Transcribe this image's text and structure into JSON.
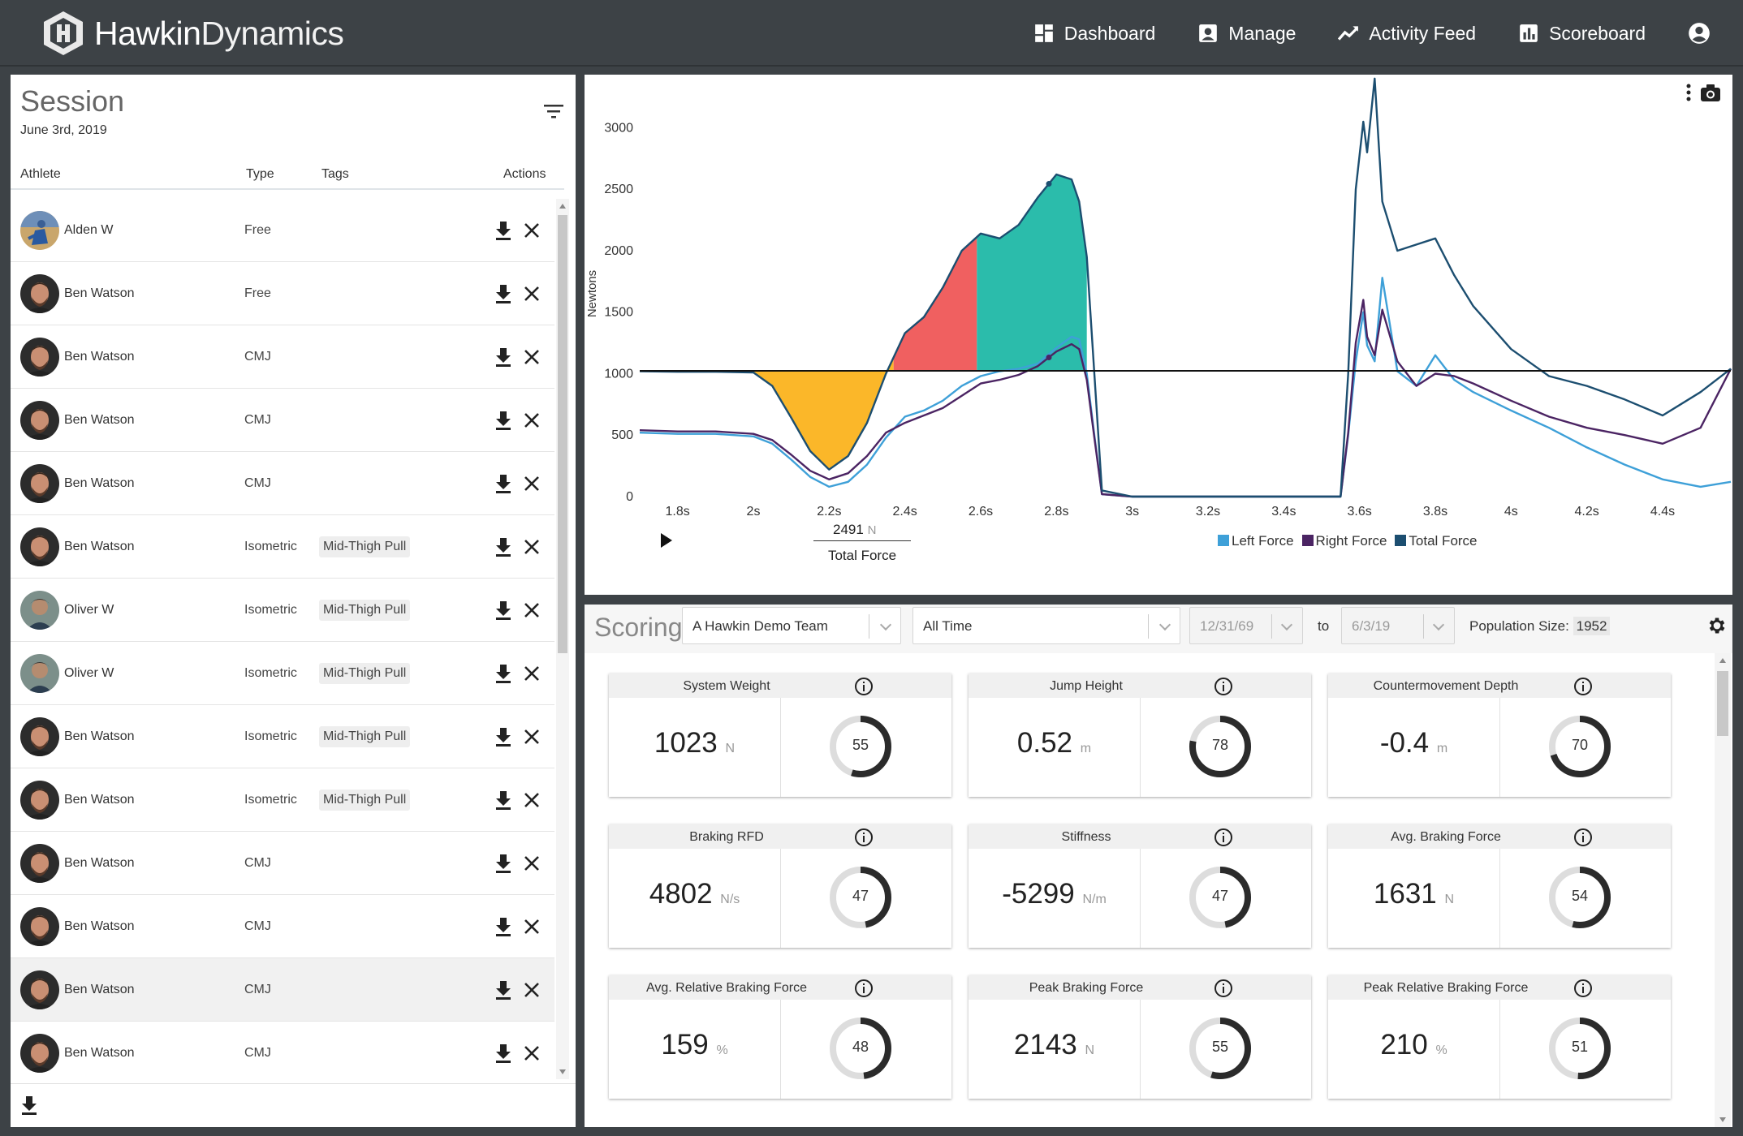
{
  "header": {
    "brand_bold": "Hawkin",
    "brand_light": "Dynamics",
    "nav": [
      {
        "label": "Dashboard",
        "icon": "dashboard-icon"
      },
      {
        "label": "Manage",
        "icon": "manage-icon"
      },
      {
        "label": "Activity Feed",
        "icon": "activity-feed-icon"
      },
      {
        "label": "Scoreboard",
        "icon": "scoreboard-icon"
      }
    ],
    "account_icon": "account-icon"
  },
  "session": {
    "title": "Session",
    "date": "June 3rd, 2019",
    "columns": {
      "athlete": "Athlete",
      "type": "Type",
      "tags": "Tags",
      "actions": "Actions"
    },
    "rows": [
      {
        "athlete": "Alden W",
        "type": "Free",
        "tag": "",
        "avatar": "alden"
      },
      {
        "athlete": "Ben Watson",
        "type": "Free",
        "tag": "",
        "avatar": "ben"
      },
      {
        "athlete": "Ben Watson",
        "type": "CMJ",
        "tag": "",
        "avatar": "ben"
      },
      {
        "athlete": "Ben Watson",
        "type": "CMJ",
        "tag": "",
        "avatar": "ben"
      },
      {
        "athlete": "Ben Watson",
        "type": "CMJ",
        "tag": "",
        "avatar": "ben"
      },
      {
        "athlete": "Ben Watson",
        "type": "Isometric",
        "tag": "Mid-Thigh Pull",
        "avatar": "ben"
      },
      {
        "athlete": "Oliver W",
        "type": "Isometric",
        "tag": "Mid-Thigh Pull",
        "avatar": "oliver"
      },
      {
        "athlete": "Oliver W",
        "type": "Isometric",
        "tag": "Mid-Thigh Pull",
        "avatar": "oliver"
      },
      {
        "athlete": "Ben Watson",
        "type": "Isometric",
        "tag": "Mid-Thigh Pull",
        "avatar": "ben"
      },
      {
        "athlete": "Ben Watson",
        "type": "Isometric",
        "tag": "Mid-Thigh Pull",
        "avatar": "ben"
      },
      {
        "athlete": "Ben Watson",
        "type": "CMJ",
        "tag": "",
        "avatar": "ben"
      },
      {
        "athlete": "Ben Watson",
        "type": "CMJ",
        "tag": "",
        "avatar": "ben"
      },
      {
        "athlete": "Ben Watson",
        "type": "CMJ",
        "tag": "",
        "avatar": "ben",
        "selected": true
      },
      {
        "athlete": "Ben Watson",
        "type": "CMJ",
        "tag": "",
        "avatar": "ben"
      }
    ]
  },
  "chart_data": {
    "type": "line",
    "ylabel": "Newtons",
    "ylim": [
      0,
      3300
    ],
    "xlim": [
      1.7,
      4.58
    ],
    "y_ticks": [
      0,
      500,
      1000,
      1500,
      2000,
      2500,
      3000
    ],
    "x_ticks": [
      "1.8s",
      "2s",
      "2.2s",
      "2.4s",
      "2.6s",
      "2.8s",
      "3s",
      "3.2s",
      "3.4s",
      "3.6s",
      "3.8s",
      "4s",
      "4.2s",
      "4.4s"
    ],
    "x_tick_values": [
      1.8,
      2.0,
      2.2,
      2.4,
      2.6,
      2.8,
      3.0,
      3.2,
      3.4,
      3.6,
      3.8,
      4.0,
      4.2,
      4.4
    ],
    "system_weight_line": 1023,
    "phases": [
      {
        "name": "unweighting",
        "color": "#fbb729",
        "x_from": 2.0,
        "x_to": 2.37
      },
      {
        "name": "braking",
        "color": "#f06060",
        "x_from": 2.37,
        "x_to": 2.59
      },
      {
        "name": "propulsive",
        "color": "#2bbcab",
        "x_from": 2.59,
        "x_to": 2.88
      }
    ],
    "series": [
      {
        "name": "Left Force",
        "color": "#3ea0d8",
        "x": [
          1.7,
          1.8,
          1.9,
          2.0,
          2.05,
          2.1,
          2.15,
          2.2,
          2.25,
          2.3,
          2.35,
          2.4,
          2.45,
          2.5,
          2.55,
          2.6,
          2.65,
          2.7,
          2.75,
          2.8,
          2.84,
          2.86,
          2.88,
          2.9,
          2.92,
          3.0,
          3.2,
          3.4,
          3.55,
          3.57,
          3.59,
          3.61,
          3.62,
          3.64,
          3.66,
          3.7,
          3.75,
          3.8,
          3.85,
          3.9,
          4.0,
          4.1,
          4.2,
          4.3,
          4.4,
          4.5,
          4.58
        ],
        "y": [
          520,
          510,
          510,
          490,
          430,
          300,
          160,
          80,
          120,
          260,
          480,
          650,
          700,
          780,
          900,
          980,
          1020,
          1040,
          1080,
          1210,
          1300,
          1280,
          1000,
          500,
          20,
          0,
          0,
          0,
          0,
          500,
          1100,
          1500,
          1230,
          1100,
          1780,
          1020,
          900,
          1150,
          950,
          850,
          700,
          560,
          400,
          260,
          140,
          80,
          120
        ]
      },
      {
        "name": "Right Force",
        "color": "#4b2463",
        "x": [
          1.7,
          1.8,
          1.9,
          2.0,
          2.05,
          2.1,
          2.15,
          2.2,
          2.25,
          2.3,
          2.35,
          2.4,
          2.45,
          2.5,
          2.55,
          2.6,
          2.65,
          2.7,
          2.75,
          2.8,
          2.84,
          2.86,
          2.88,
          2.9,
          2.92,
          3.0,
          3.2,
          3.4,
          3.55,
          3.57,
          3.59,
          3.61,
          3.62,
          3.64,
          3.66,
          3.7,
          3.75,
          3.8,
          3.85,
          3.9,
          4.0,
          4.1,
          4.2,
          4.3,
          4.4,
          4.5,
          4.58
        ],
        "y": [
          540,
          530,
          530,
          510,
          460,
          340,
          210,
          140,
          190,
          330,
          520,
          600,
          660,
          720,
          820,
          920,
          950,
          990,
          1060,
          1180,
          1240,
          1200,
          950,
          480,
          20,
          0,
          0,
          0,
          0,
          520,
          1250,
          1600,
          1300,
          1150,
          1520,
          1100,
          900,
          1000,
          980,
          920,
          780,
          650,
          560,
          500,
          430,
          560,
          1040
        ]
      },
      {
        "name": "Total Force",
        "color": "#1c4e70",
        "x": [
          1.7,
          1.8,
          1.9,
          2.0,
          2.05,
          2.1,
          2.15,
          2.2,
          2.25,
          2.3,
          2.35,
          2.4,
          2.45,
          2.5,
          2.55,
          2.6,
          2.65,
          2.7,
          2.75,
          2.8,
          2.84,
          2.86,
          2.88,
          2.9,
          2.92,
          3.0,
          3.2,
          3.4,
          3.55,
          3.57,
          3.59,
          3.61,
          3.62,
          3.64,
          3.66,
          3.68,
          3.7,
          3.75,
          3.8,
          3.85,
          3.9,
          4.0,
          4.1,
          4.2,
          4.3,
          4.4,
          4.5,
          4.58
        ],
        "y": [
          1020,
          1015,
          1015,
          1010,
          900,
          640,
          370,
          220,
          330,
          600,
          1000,
          1330,
          1460,
          1700,
          2000,
          2140,
          2100,
          2210,
          2430,
          2620,
          2580,
          2400,
          1950,
          1000,
          50,
          0,
          0,
          0,
          0,
          1000,
          2500,
          3050,
          2800,
          3400,
          2400,
          2200,
          2000,
          2050,
          2100,
          1800,
          1550,
          1200,
          980,
          900,
          790,
          660,
          850,
          1040
        ]
      }
    ],
    "readout": {
      "value": "2491",
      "unit": "N",
      "label": "Total Force"
    },
    "legend": [
      "Left Force",
      "Right Force",
      "Total Force"
    ],
    "legend_placement": "bottom-right"
  },
  "scoring": {
    "title": "Scoring",
    "team": "A Hawkin Demo Team",
    "range": "All Time",
    "from": "12/31/69",
    "to_label": "to",
    "to": "6/3/19",
    "population_label": "Population Size:",
    "population": "1952",
    "cards": [
      {
        "title": "System Weight",
        "value": "1023",
        "unit": "N",
        "score": 55
      },
      {
        "title": "Jump Height",
        "value": "0.52",
        "unit": "m",
        "score": 78
      },
      {
        "title": "Countermovement Depth",
        "value": "-0.4",
        "unit": "m",
        "score": 70
      },
      {
        "title": "Braking RFD",
        "value": "4802",
        "unit": "N/s",
        "score": 47
      },
      {
        "title": "Stiffness",
        "value": "-5299",
        "unit": "N/m",
        "score": 47
      },
      {
        "title": "Avg. Braking Force",
        "value": "1631",
        "unit": "N",
        "score": 54
      },
      {
        "title": "Avg. Relative Braking Force",
        "value": "159",
        "unit": "%",
        "score": 48
      },
      {
        "title": "Peak Braking Force",
        "value": "2143",
        "unit": "N",
        "score": 55
      },
      {
        "title": "Peak Relative Braking Force",
        "value": "210",
        "unit": "%",
        "score": 51
      }
    ]
  },
  "colors": {
    "header_bg": "#3d4246",
    "donut_fg": "#2b2b2b",
    "donut_bg": "#dddddd"
  }
}
